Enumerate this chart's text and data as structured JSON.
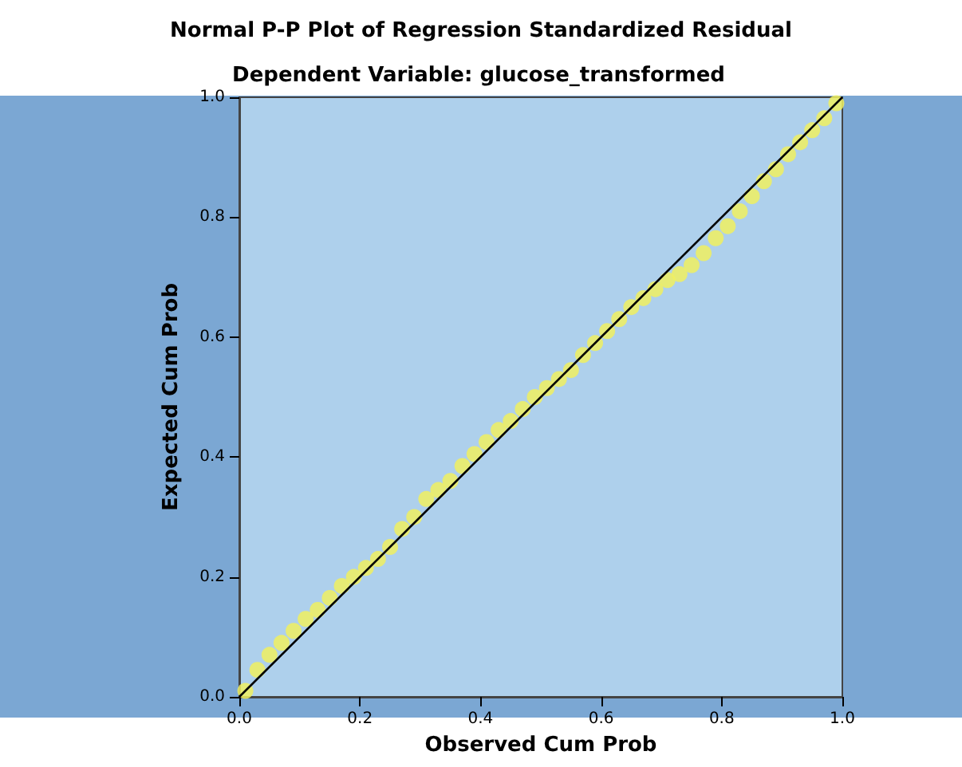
{
  "chart_data": {
    "type": "scatter",
    "title": "Normal P-P Plot of Regression Standardized Residual",
    "subtitle": "Dependent Variable: glucose_transformed",
    "xlabel": "Observed Cum Prob",
    "ylabel": "Expected Cum Prob",
    "xlim": [
      0,
      1
    ],
    "ylim": [
      0,
      1
    ],
    "xticks": [
      {
        "value": 0,
        "label": "0.0"
      },
      {
        "value": 0.2,
        "label": "0.2"
      },
      {
        "value": 0.4,
        "label": "0.4"
      },
      {
        "value": 0.6,
        "label": "0.6"
      },
      {
        "value": 0.8,
        "label": "0.8"
      },
      {
        "value": 1,
        "label": "1.0"
      }
    ],
    "yticks": [
      {
        "value": 0,
        "label": "0.0"
      },
      {
        "value": 0.2,
        "label": "0.2"
      },
      {
        "value": 0.4,
        "label": "0.4"
      },
      {
        "value": 0.6,
        "label": "0.6"
      },
      {
        "value": 0.8,
        "label": "0.8"
      },
      {
        "value": 1,
        "label": "1.0"
      }
    ],
    "grid": false,
    "marker": "circle",
    "series": [
      {
        "color": "#f0f060",
        "x": [
          0.01,
          0.03,
          0.05,
          0.07,
          0.09,
          0.11,
          0.13,
          0.15,
          0.17,
          0.19,
          0.21,
          0.23,
          0.25,
          0.27,
          0.29,
          0.31,
          0.33,
          0.35,
          0.37,
          0.39,
          0.41,
          0.43,
          0.45,
          0.47,
          0.49,
          0.51,
          0.53,
          0.55,
          0.57,
          0.59,
          0.61,
          0.63,
          0.65,
          0.67,
          0.69,
          0.71,
          0.73,
          0.75,
          0.77,
          0.79,
          0.81,
          0.83,
          0.85,
          0.87,
          0.89,
          0.91,
          0.93,
          0.95,
          0.97,
          0.99
        ],
        "values": [
          0.01,
          0.045,
          0.07,
          0.09,
          0.11,
          0.13,
          0.145,
          0.165,
          0.185,
          0.2,
          0.215,
          0.23,
          0.25,
          0.28,
          0.3,
          0.33,
          0.345,
          0.36,
          0.385,
          0.405,
          0.425,
          0.445,
          0.46,
          0.48,
          0.5,
          0.515,
          0.53,
          0.545,
          0.57,
          0.59,
          0.61,
          0.63,
          0.65,
          0.665,
          0.68,
          0.695,
          0.705,
          0.72,
          0.74,
          0.765,
          0.785,
          0.81,
          0.835,
          0.86,
          0.88,
          0.905,
          0.925,
          0.945,
          0.965,
          0.99
        ]
      },
      {
        "type": "line",
        "marker": "none",
        "color": "#000000",
        "x": [
          0,
          1
        ],
        "values": [
          0,
          1
        ]
      }
    ]
  }
}
